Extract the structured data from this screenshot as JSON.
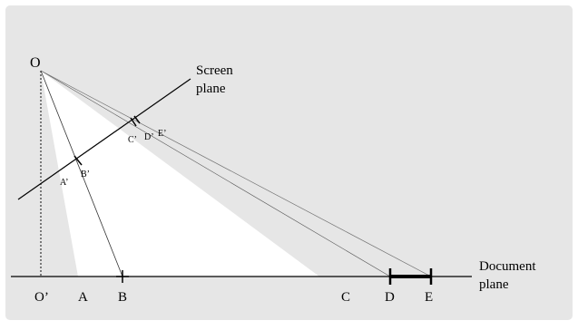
{
  "colors": {
    "background": "#e6e6e6",
    "border": "#ffffff",
    "light_region": "#ffffff",
    "line": "#000000",
    "ray": "#555555"
  },
  "labels": {
    "origin": "O",
    "origin_foot": "O’",
    "screen_plane": [
      "Screen",
      "plane"
    ],
    "document_plane": [
      "Document",
      "plane"
    ],
    "doc_points": {
      "A": "A",
      "B": "B",
      "C": "C",
      "D": "D",
      "E": "E"
    },
    "screen_points": {
      "A": "A’",
      "B": "B’",
      "C": "C’",
      "D": "D’",
      "E": "E’"
    }
  }
}
